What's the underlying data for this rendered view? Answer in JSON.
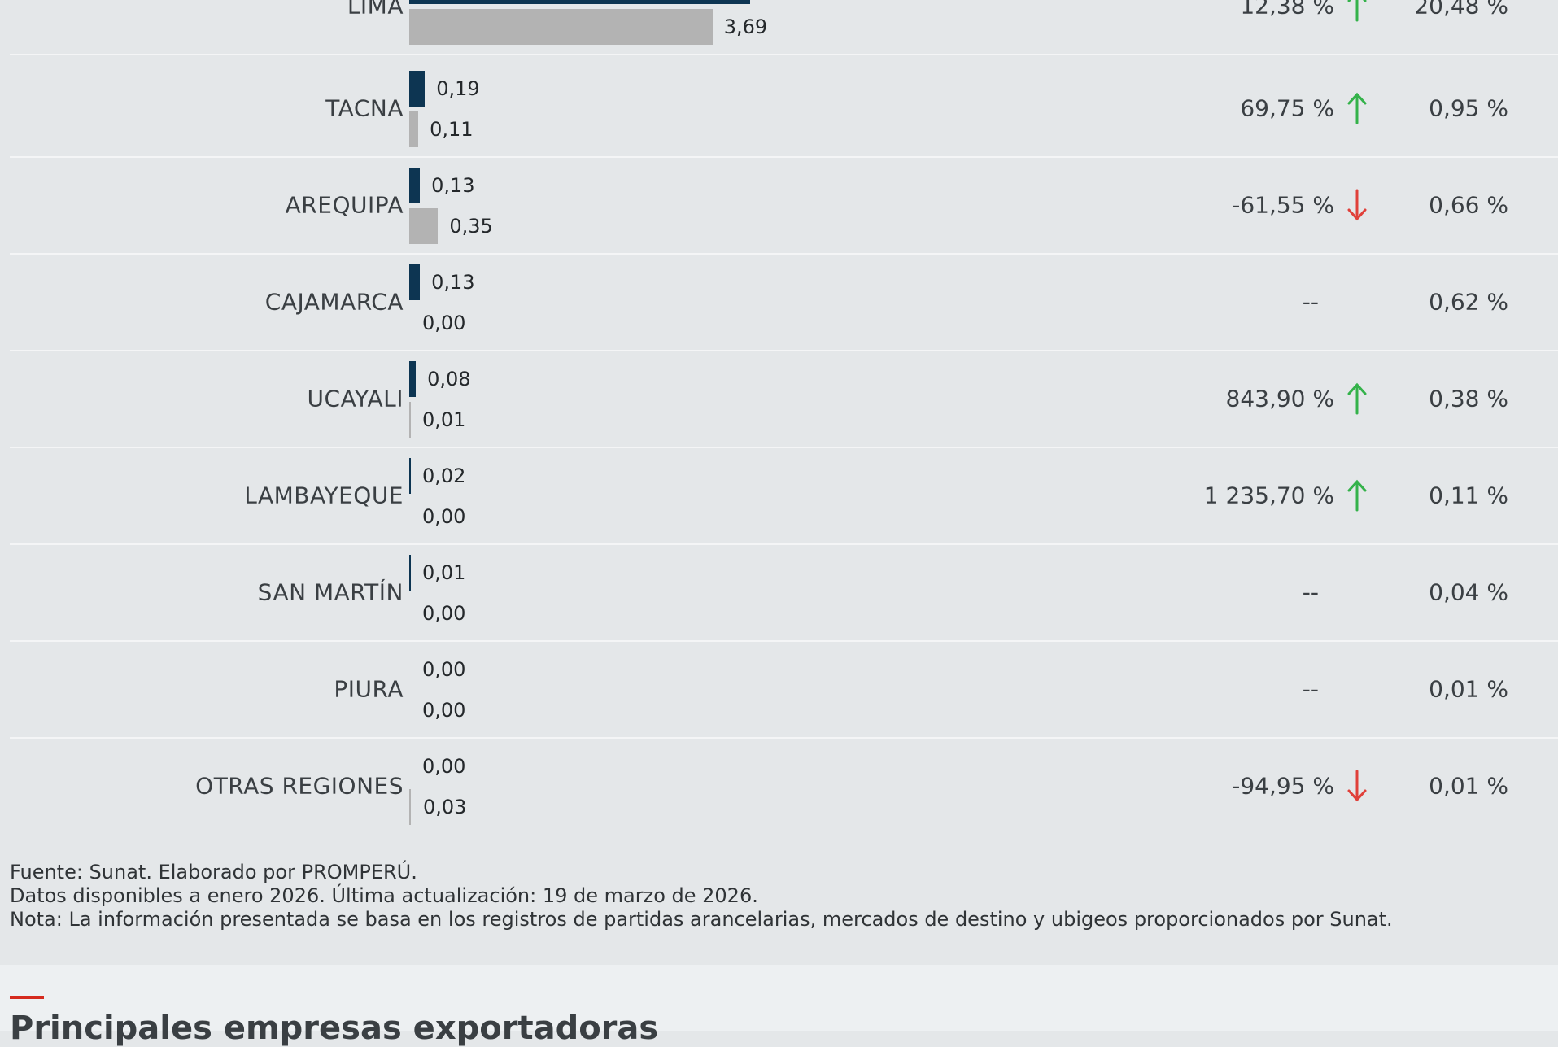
{
  "colors": {
    "current_bar": "#0d3552",
    "previous_bar": "#b3b3b3",
    "arrow_up": "#34b24a",
    "arrow_down": "#e0403a",
    "accent": "#d52b1e"
  },
  "rows": [
    {
      "region": "LIMA",
      "current_value": "",
      "previous_value": "3,69",
      "variation": "12,38 %",
      "trend": "up",
      "share": "20,48 %"
    },
    {
      "region": "TACNA",
      "current_value": "0,19",
      "previous_value": "0,11",
      "variation": "69,75 %",
      "trend": "up",
      "share": "0,95 %"
    },
    {
      "region": "AREQUIPA",
      "current_value": "0,13",
      "previous_value": "0,35",
      "variation": "-61,55 %",
      "trend": "down",
      "share": "0,66 %"
    },
    {
      "region": "CAJAMARCA",
      "current_value": "0,13",
      "previous_value": "0,00",
      "variation": "--",
      "trend": "none",
      "share": "0,62 %"
    },
    {
      "region": "UCAYALI",
      "current_value": "0,08",
      "previous_value": "0,01",
      "variation": "843,90 %",
      "trend": "up",
      "share": "0,38 %"
    },
    {
      "region": "LAMBAYEQUE",
      "current_value": "0,02",
      "previous_value": "0,00",
      "variation": "1 235,70 %",
      "trend": "up",
      "share": "0,11 %"
    },
    {
      "region": "SAN MARTÍN",
      "current_value": "0,01",
      "previous_value": "0,00",
      "variation": "--",
      "trend": "none",
      "share": "0,04 %"
    },
    {
      "region": "PIURA",
      "current_value": "0,00",
      "previous_value": "0,00",
      "variation": "--",
      "trend": "none",
      "share": "0,01 %"
    },
    {
      "region": "OTRAS REGIONES",
      "current_value": "0,00",
      "previous_value": "0,03",
      "variation": "-94,95 %",
      "trend": "down",
      "share": "0,01 %"
    }
  ],
  "footer": {
    "source": "Fuente: Sunat. Elaborado por PROMPERÚ.",
    "availability": "Datos disponibles a enero 2026. Última actualización: 19 de marzo de 2026.",
    "note": "Nota: La información presentada se basa en los registros de partidas arancelarias, mercados de destino y ubigeos proporcionados por Sunat."
  },
  "next_section": {
    "title": "Principales empresas exportadoras"
  }
}
